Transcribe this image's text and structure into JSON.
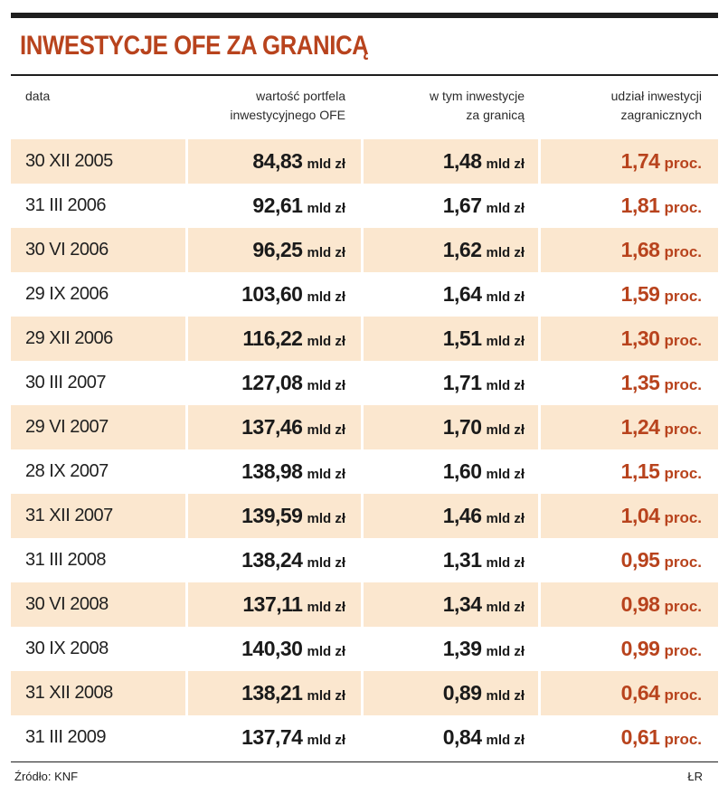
{
  "title": "INWESTYCJE OFE ZA GRANICĄ",
  "headers": {
    "date": "data",
    "portfolio_line1": "wartość portfela",
    "portfolio_line2": "inwestycyjnego OFE",
    "foreign_line1": "w tym inwestycje",
    "foreign_line2": "za granicą",
    "share_line1": "udział inwestycji",
    "share_line2": "zagranicznych"
  },
  "units": {
    "portfolio": "mld zł",
    "foreign": "mld zł",
    "share": "proc."
  },
  "rows": [
    {
      "date": "30 XII 2005",
      "portfolio": "84,83",
      "foreign": "1,48",
      "share": "1,74"
    },
    {
      "date": "31 III 2006",
      "portfolio": "92,61",
      "foreign": "1,67",
      "share": "1,81"
    },
    {
      "date": "30 VI 2006",
      "portfolio": "96,25",
      "foreign": "1,62",
      "share": "1,68"
    },
    {
      "date": "29 IX 2006",
      "portfolio": "103,60",
      "foreign": "1,64",
      "share": "1,59"
    },
    {
      "date": "29 XII 2006",
      "portfolio": "116,22",
      "foreign": "1,51",
      "share": "1,30"
    },
    {
      "date": "30 III 2007",
      "portfolio": "127,08",
      "foreign": "1,71",
      "share": "1,35"
    },
    {
      "date": "29 VI 2007",
      "portfolio": "137,46",
      "foreign": "1,70",
      "share": "1,24"
    },
    {
      "date": "28 IX 2007",
      "portfolio": "138,98",
      "foreign": "1,60",
      "share": "1,15"
    },
    {
      "date": "31 XII 2007",
      "portfolio": "139,59",
      "foreign": "1,46",
      "share": "1,04"
    },
    {
      "date": "31 III 2008",
      "portfolio": "138,24",
      "foreign": "1,31",
      "share": "0,95"
    },
    {
      "date": "30 VI 2008",
      "portfolio": "137,11",
      "foreign": "1,34",
      "share": "0,98"
    },
    {
      "date": "30 IX 2008",
      "portfolio": "140,30",
      "foreign": "1,39",
      "share": "0,99"
    },
    {
      "date": "31 XII 2008",
      "portfolio": "138,21",
      "foreign": "0,89",
      "share": "0,64"
    },
    {
      "date": "31 III 2009",
      "portfolio": "137,74",
      "foreign": "0,84",
      "share": "0,61"
    }
  ],
  "footer": {
    "source": "Źródło: KNF",
    "author": "ŁR"
  },
  "colors": {
    "accent": "#b8431d",
    "row_highlight": "#fbe7cf",
    "rule": "#1e1e1e"
  }
}
